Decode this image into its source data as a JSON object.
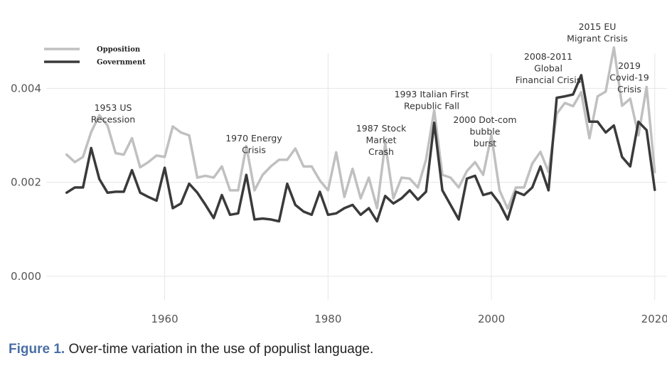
{
  "chart_data": {
    "type": "line",
    "title": "",
    "xlabel": "",
    "ylabel": "",
    "xlim": [
      1945.5,
      2021.5
    ],
    "ylim": [
      -0.0005,
      0.0052
    ],
    "x_ticks": [
      {
        "value": 1960,
        "label": "1960"
      },
      {
        "value": 1980,
        "label": "1980"
      },
      {
        "value": 2000,
        "label": "2000"
      },
      {
        "value": 2020,
        "label": "2020"
      }
    ],
    "y_ticks": [
      {
        "value": 0.0,
        "label": "0.000"
      },
      {
        "value": 0.002,
        "label": "0.002"
      },
      {
        "value": 0.004,
        "label": "0.004"
      }
    ],
    "grid": true,
    "legend_position": "top-left",
    "x": [
      1948,
      1949,
      1950,
      1951,
      1952,
      1953,
      1954,
      1955,
      1956,
      1957,
      1958,
      1959,
      1960,
      1961,
      1962,
      1963,
      1964,
      1965,
      1966,
      1967,
      1968,
      1969,
      1970,
      1971,
      1972,
      1973,
      1974,
      1975,
      1976,
      1977,
      1978,
      1979,
      1980,
      1981,
      1982,
      1983,
      1984,
      1985,
      1986,
      1987,
      1988,
      1989,
      1990,
      1991,
      1992,
      1993,
      1994,
      1995,
      1996,
      1997,
      1998,
      1999,
      2000,
      2001,
      2002,
      2003,
      2004,
      2005,
      2006,
      2007,
      2008,
      2009,
      2010,
      2011,
      2012,
      2013,
      2014,
      2015,
      2016,
      2017,
      2018,
      2019,
      2020
    ],
    "series": [
      {
        "name": "Opposition",
        "color": "#c0c0c0",
        "values": [
          0.00259,
          0.00243,
          0.00254,
          0.00307,
          0.00343,
          0.00321,
          0.00262,
          0.00259,
          0.00294,
          0.00232,
          0.00243,
          0.00257,
          0.00254,
          0.00319,
          0.00306,
          0.003,
          0.0021,
          0.00214,
          0.0021,
          0.00234,
          0.00183,
          0.00183,
          0.00277,
          0.00183,
          0.00216,
          0.00234,
          0.00248,
          0.00248,
          0.00272,
          0.00234,
          0.00234,
          0.00204,
          0.00183,
          0.00264,
          0.00169,
          0.00229,
          0.00166,
          0.0021,
          0.00145,
          0.00283,
          0.00166,
          0.0021,
          0.00208,
          0.00189,
          0.00248,
          0.00353,
          0.00216,
          0.0021,
          0.00189,
          0.00224,
          0.00243,
          0.00216,
          0.003,
          0.00183,
          0.00144,
          0.00189,
          0.00189,
          0.0024,
          0.00265,
          0.00222,
          0.00346,
          0.00369,
          0.00362,
          0.00392,
          0.00294,
          0.00383,
          0.00393,
          0.00487,
          0.00363,
          0.00378,
          0.003,
          0.00403,
          0.00222
        ],
        "line_width": 3.5
      },
      {
        "name": "Government",
        "color": "#3a3a3a",
        "values": [
          0.00178,
          0.00189,
          0.00189,
          0.00273,
          0.00207,
          0.00178,
          0.0018,
          0.0018,
          0.00226,
          0.00178,
          0.00169,
          0.00161,
          0.00231,
          0.00145,
          0.00155,
          0.00197,
          0.00178,
          0.00152,
          0.00124,
          0.00173,
          0.00131,
          0.00134,
          0.00216,
          0.00121,
          0.00123,
          0.00121,
          0.00117,
          0.00197,
          0.00152,
          0.00138,
          0.00131,
          0.0018,
          0.00131,
          0.00134,
          0.00145,
          0.00152,
          0.00131,
          0.00145,
          0.00117,
          0.00171,
          0.00155,
          0.00166,
          0.00183,
          0.00163,
          0.0018,
          0.00327,
          0.00183,
          0.00152,
          0.00121,
          0.00208,
          0.00214,
          0.00173,
          0.00178,
          0.00155,
          0.00121,
          0.0018,
          0.00173,
          0.00189,
          0.00234,
          0.00183,
          0.0038,
          0.00383,
          0.00387,
          0.00428,
          0.00329,
          0.00329,
          0.00306,
          0.00321,
          0.00254,
          0.00234,
          0.00329,
          0.00311,
          0.00184
        ],
        "line_width": 3.5
      }
    ],
    "annotations": [
      {
        "year": 1953,
        "lines": [
          "1953 US",
          "Recession"
        ]
      },
      {
        "year": 1970,
        "lines": [
          "1970 Energy",
          "Crisis"
        ]
      },
      {
        "year": 1987,
        "lines": [
          "1987 Stock",
          "Market",
          "Crash"
        ]
      },
      {
        "year": 1993,
        "lines": [
          "1993 Italian First",
          "Republic Fall"
        ]
      },
      {
        "year": 2000,
        "lines": [
          "2000 Dot-com",
          "bubble",
          "burst"
        ]
      },
      {
        "year": 2009,
        "lines": [
          "2008-2011",
          "Global",
          "Financial Crisis"
        ]
      },
      {
        "year": 2015,
        "lines": [
          "2015 EU",
          "Migrant Crisis"
        ]
      },
      {
        "year": 2019,
        "lines": [
          "2019",
          "Covid-19",
          "Crisis"
        ]
      }
    ]
  },
  "caption": {
    "label": "Figure 1.",
    "text": "Over-time variation in the use of populist language."
  }
}
